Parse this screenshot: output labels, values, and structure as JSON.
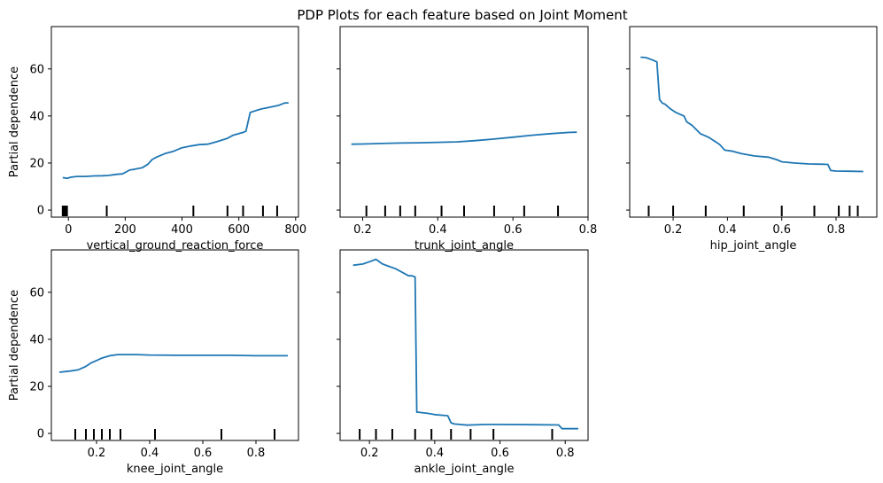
{
  "figure_title": "PDP Plots for each feature based on Joint Moment",
  "colors": {
    "line": "#1f77b4",
    "axes": "#000000",
    "background": "#ffffff"
  },
  "chart_data": [
    {
      "type": "line",
      "xlabel": "vertical_ground_reaction_force",
      "ylabel": "Partial dependence",
      "xlim": [
        -60,
        810
      ],
      "ylim": [
        -3,
        78
      ],
      "xticks": [
        0,
        200,
        400,
        600,
        800
      ],
      "yticks": [
        0,
        20,
        40,
        60
      ],
      "show_yticklabels": true,
      "x": [
        -20,
        -5,
        10,
        30,
        60,
        90,
        120,
        140,
        170,
        190,
        200,
        215,
        230,
        260,
        280,
        295,
        310,
        340,
        370,
        400,
        430,
        460,
        490,
        520,
        560,
        580,
        600,
        615,
        625,
        640,
        660,
        680,
        700,
        720,
        740,
        760,
        775
      ],
      "values": [
        13.8,
        13.5,
        14.0,
        14.3,
        14.3,
        14.5,
        14.6,
        14.7,
        15.2,
        15.4,
        16.0,
        17.0,
        17.3,
        18.0,
        19.5,
        21.5,
        22.5,
        24.0,
        25.0,
        26.5,
        27.2,
        27.8,
        28.0,
        29.0,
        30.5,
        31.8,
        32.5,
        33.0,
        33.5,
        41.5,
        42.3,
        43.0,
        43.5,
        44.0,
        44.5,
        45.5,
        45.6
      ],
      "deciles": [
        -20,
        -15,
        -10,
        -5,
        135,
        440,
        560,
        615,
        685,
        735
      ]
    },
    {
      "type": "line",
      "xlabel": "trunk_joint_angle",
      "ylabel": "",
      "xlim": [
        0.14,
        0.8
      ],
      "ylim": [
        -3,
        78
      ],
      "xticks": [
        0.2,
        0.4,
        0.6,
        0.8
      ],
      "yticks": [
        0,
        20,
        40,
        60
      ],
      "show_yticklabels": false,
      "x": [
        0.17,
        0.2,
        0.25,
        0.3,
        0.35,
        0.4,
        0.45,
        0.5,
        0.55,
        0.6,
        0.65,
        0.7,
        0.75,
        0.77
      ],
      "values": [
        28.0,
        28.1,
        28.3,
        28.5,
        28.6,
        28.8,
        29.0,
        29.5,
        30.2,
        31.0,
        31.8,
        32.5,
        33.0,
        33.1
      ],
      "deciles": [
        0.21,
        0.26,
        0.3,
        0.34,
        0.41,
        0.47,
        0.55,
        0.63,
        0.72
      ]
    },
    {
      "type": "line",
      "xlabel": "hip_joint_angle",
      "ylabel": "",
      "xlim": [
        0.04,
        0.95
      ],
      "ylim": [
        -3,
        78
      ],
      "xticks": [
        0.2,
        0.4,
        0.6,
        0.8
      ],
      "yticks": [
        0,
        20,
        40,
        60
      ],
      "show_yticklabels": false,
      "x": [
        0.08,
        0.1,
        0.12,
        0.14,
        0.15,
        0.16,
        0.17,
        0.19,
        0.21,
        0.24,
        0.25,
        0.27,
        0.3,
        0.33,
        0.35,
        0.37,
        0.39,
        0.42,
        0.45,
        0.5,
        0.55,
        0.58,
        0.6,
        0.65,
        0.7,
        0.75,
        0.77,
        0.78,
        0.8,
        0.85,
        0.9
      ],
      "values": [
        65.0,
        64.8,
        64.0,
        63.0,
        47.0,
        45.5,
        45.0,
        43.0,
        41.5,
        40.0,
        37.5,
        36.0,
        32.5,
        31.0,
        29.5,
        28.0,
        25.5,
        25.0,
        24.0,
        23.0,
        22.5,
        21.5,
        20.5,
        20.0,
        19.6,
        19.5,
        19.4,
        16.8,
        16.6,
        16.5,
        16.4
      ],
      "deciles": [
        0.11,
        0.2,
        0.32,
        0.46,
        0.6,
        0.72,
        0.81,
        0.85,
        0.88
      ]
    },
    {
      "type": "line",
      "xlabel": "knee_joint_angle",
      "ylabel": "Partial dependence",
      "xlim": [
        0.03,
        0.96
      ],
      "ylim": [
        -3,
        78
      ],
      "xticks": [
        0.2,
        0.4,
        0.6,
        0.8
      ],
      "yticks": [
        0,
        20,
        40,
        60
      ],
      "show_yticklabels": true,
      "x": [
        0.06,
        0.1,
        0.13,
        0.16,
        0.18,
        0.2,
        0.22,
        0.25,
        0.28,
        0.3,
        0.35,
        0.4,
        0.5,
        0.6,
        0.7,
        0.8,
        0.92
      ],
      "values": [
        26.0,
        26.5,
        27.0,
        28.5,
        30.0,
        31.0,
        32.0,
        33.0,
        33.5,
        33.5,
        33.5,
        33.3,
        33.2,
        33.2,
        33.2,
        33.0,
        33.0
      ],
      "deciles": [
        0.12,
        0.16,
        0.19,
        0.22,
        0.25,
        0.29,
        0.42,
        0.67,
        0.87
      ]
    },
    {
      "type": "line",
      "xlabel": "ankle_joint_angle",
      "ylabel": "",
      "xlim": [
        0.11,
        0.87
      ],
      "ylim": [
        -3,
        78
      ],
      "xticks": [
        0.2,
        0.4,
        0.6,
        0.8
      ],
      "yticks": [
        0,
        20,
        40,
        60
      ],
      "show_yticklabels": false,
      "x": [
        0.15,
        0.18,
        0.2,
        0.22,
        0.24,
        0.26,
        0.28,
        0.3,
        0.32,
        0.33,
        0.34,
        0.345,
        0.35,
        0.38,
        0.4,
        0.44,
        0.45,
        0.46,
        0.5,
        0.55,
        0.6,
        0.7,
        0.78,
        0.79,
        0.84
      ],
      "values": [
        71.5,
        72.0,
        73.0,
        74.0,
        72.0,
        71.0,
        70.0,
        68.5,
        67.0,
        67.0,
        66.5,
        9.0,
        9.0,
        8.5,
        8.0,
        7.5,
        4.5,
        4.0,
        3.5,
        3.8,
        3.8,
        3.7,
        3.6,
        2.0,
        2.0
      ],
      "deciles": [
        0.17,
        0.22,
        0.27,
        0.34,
        0.39,
        0.45,
        0.51,
        0.58,
        0.76
      ]
    }
  ]
}
